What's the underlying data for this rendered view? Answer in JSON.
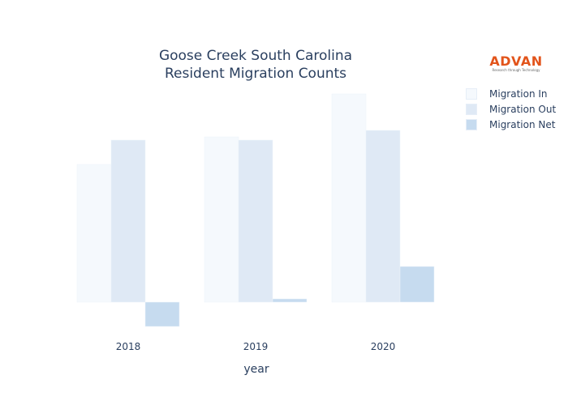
{
  "chart_data": {
    "type": "bar",
    "title": "Goose Creek South Carolina",
    "subtitle": "Resident Migration Counts",
    "xlabel": "year",
    "ylabel": "",
    "categories": [
      "2018",
      "2019",
      "2020"
    ],
    "series": [
      {
        "name": "Migration In",
        "values": [
          170,
          204,
          257
        ],
        "color": "#f5f9fd"
      },
      {
        "name": "Migration Out",
        "values": [
          200,
          200,
          212
        ],
        "color": "#dfe9f5"
      },
      {
        "name": "Migration Net",
        "values": [
          -30,
          4,
          44
        ],
        "color": "#c6dbef"
      }
    ],
    "ylim": [
      -40,
      260
    ],
    "grid": false,
    "legend": "top-right",
    "note": "No y-axis shown; values in relative units"
  },
  "logo": {
    "name": "ADVAN",
    "tagline": "Research through Technology"
  }
}
